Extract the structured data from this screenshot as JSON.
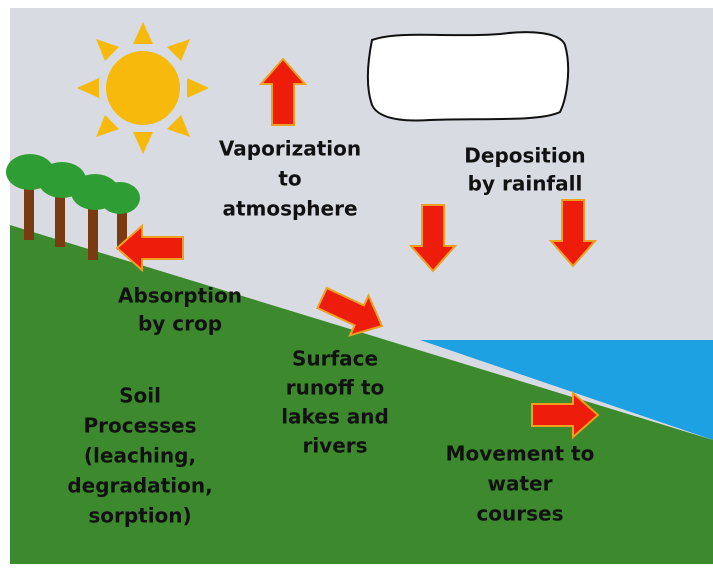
{
  "labels": [
    {
      "lines": [
        "Vaporization",
        "to",
        "atmosphere"
      ]
    },
    {
      "lines": [
        "Deposition",
        "by rainfall"
      ]
    },
    {
      "lines": [
        "Absorption",
        "by crop"
      ]
    },
    {
      "lines": [
        "Surface",
        "runoff to",
        "lakes and",
        "rivers"
      ]
    },
    {
      "lines": [
        "Soil",
        "Processes",
        "(leaching,",
        "degradation,",
        "sorption)"
      ]
    },
    {
      "lines": [
        "Movement to",
        "water",
        "courses"
      ]
    }
  ]
}
